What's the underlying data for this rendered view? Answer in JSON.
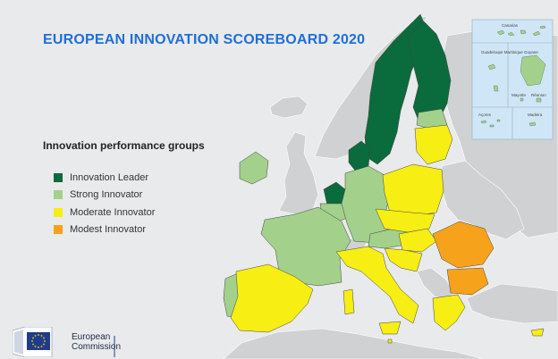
{
  "title": "EUROPEAN INNOVATION SCOREBOARD 2020",
  "legend": {
    "title": "Innovation performance groups",
    "items": [
      {
        "label": "Innovation Leader",
        "color": "#0a6b3d"
      },
      {
        "label": "Strong Innovator",
        "color": "#a3d18b"
      },
      {
        "label": "Moderate Innovator",
        "color": "#f7ee13"
      },
      {
        "label": "Modest Innovator",
        "color": "#f7a21b"
      }
    ]
  },
  "colors": {
    "background": "#e9eaeb",
    "non_eu_land": "#cfd1d3",
    "sea": "#e9eaeb",
    "inset_sea": "#cfe6f7",
    "title": "#1e6fd9"
  },
  "insets": {
    "labels": [
      "Canarias",
      "Guadeloupe Martinique",
      "Guyane",
      "Mayotte",
      "Réunion",
      "Açores",
      "Madeira"
    ]
  },
  "footer": {
    "organisation": [
      "European",
      "Commission"
    ]
  }
}
